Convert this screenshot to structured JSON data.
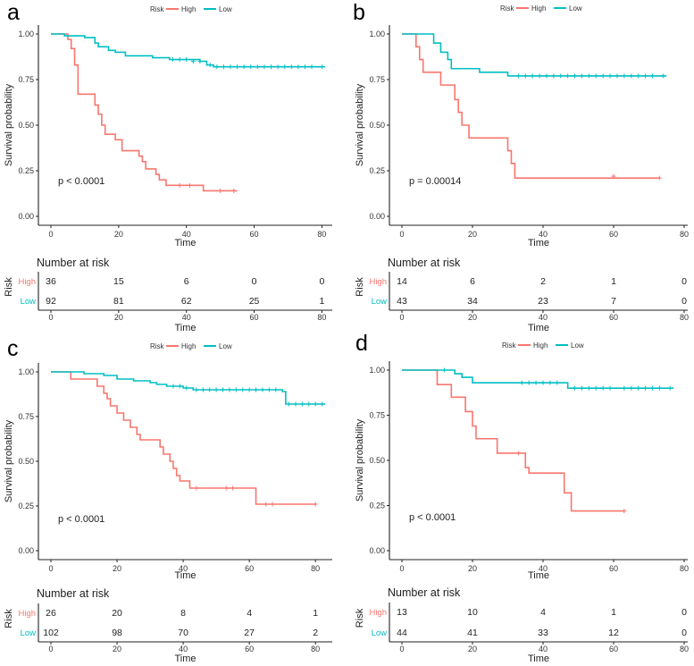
{
  "colors": {
    "high": "#F8766D",
    "low": "#00BFC4"
  },
  "chart_data": [
    {
      "type": "line",
      "panel_label": "a",
      "xlabel": "Time",
      "ylabel": "Survival probability",
      "xlim": [
        0,
        82
      ],
      "ylim": [
        0,
        1
      ],
      "xticks": [
        0,
        20,
        40,
        60,
        80
      ],
      "yticks": [
        "0.00",
        "0.25",
        "0.50",
        "0.75",
        "1.00"
      ],
      "legend_title": "Risk",
      "p_value": "p < 0.0001",
      "series": [
        {
          "name": "High",
          "steps": [
            [
              0,
              1
            ],
            [
              5,
              0.97
            ],
            [
              6,
              0.92
            ],
            [
              7,
              0.83
            ],
            [
              8,
              0.67
            ],
            [
              13,
              0.61
            ],
            [
              14,
              0.56
            ],
            [
              15,
              0.5
            ],
            [
              16,
              0.45
            ],
            [
              19,
              0.42
            ],
            [
              21,
              0.36
            ],
            [
              26,
              0.33
            ],
            [
              27,
              0.3
            ],
            [
              28,
              0.26
            ],
            [
              31,
              0.23
            ],
            [
              32,
              0.2
            ],
            [
              34,
              0.17
            ],
            [
              45,
              0.14
            ],
            [
              55,
              0.14
            ]
          ],
          "censors": [
            [
              38,
              0.17
            ],
            [
              41,
              0.17
            ],
            [
              50,
              0.14
            ],
            [
              54,
              0.14
            ]
          ]
        },
        {
          "name": "Low",
          "steps": [
            [
              0,
              1
            ],
            [
              4,
              0.99
            ],
            [
              10,
              0.98
            ],
            [
              13,
              0.95
            ],
            [
              14,
              0.93
            ],
            [
              17,
              0.91
            ],
            [
              19,
              0.9
            ],
            [
              22,
              0.88
            ],
            [
              30,
              0.87
            ],
            [
              35,
              0.86
            ],
            [
              44,
              0.85
            ],
            [
              46,
              0.83
            ],
            [
              48,
              0.82
            ],
            [
              81,
              0.82
            ]
          ],
          "censors": [
            [
              36,
              0.86
            ],
            [
              38,
              0.86
            ],
            [
              40,
              0.86
            ],
            [
              42,
              0.85
            ],
            [
              44,
              0.85
            ],
            [
              47,
              0.83
            ],
            [
              49,
              0.82
            ],
            [
              51,
              0.82
            ],
            [
              53,
              0.82
            ],
            [
              55,
              0.82
            ],
            [
              57,
              0.82
            ],
            [
              59,
              0.82
            ],
            [
              61,
              0.82
            ],
            [
              63,
              0.82
            ],
            [
              65,
              0.82
            ],
            [
              67,
              0.82
            ],
            [
              69,
              0.82
            ],
            [
              71,
              0.82
            ],
            [
              73,
              0.82
            ],
            [
              75,
              0.82
            ],
            [
              77,
              0.82
            ],
            [
              80,
              0.82
            ]
          ]
        }
      ],
      "risk_table": {
        "title": "Number at risk",
        "ylabel": "Risk",
        "xlabel": "Time",
        "rows": [
          {
            "group": "High",
            "values": [
              "36",
              "15",
              "6",
              "0",
              "0"
            ]
          },
          {
            "group": "Low",
            "values": [
              "92",
              "81",
              "62",
              "25",
              "1"
            ]
          }
        ]
      }
    },
    {
      "type": "line",
      "panel_label": "b",
      "xlabel": "Time",
      "ylabel": "Survival probability",
      "xlim": [
        0,
        80
      ],
      "ylim": [
        0,
        1
      ],
      "xticks": [
        0,
        20,
        40,
        60,
        80
      ],
      "yticks": [
        "0.00",
        "0.25",
        "0.50",
        "0.75",
        "1.00"
      ],
      "legend_title": "Risk",
      "p_value": "p = 0.00014",
      "series": [
        {
          "name": "High",
          "steps": [
            [
              0,
              1
            ],
            [
              4,
              0.93
            ],
            [
              5,
              0.86
            ],
            [
              6,
              0.79
            ],
            [
              11,
              0.72
            ],
            [
              15,
              0.64
            ],
            [
              16,
              0.57
            ],
            [
              17,
              0.5
            ],
            [
              19,
              0.43
            ],
            [
              30,
              0.36
            ],
            [
              31,
              0.29
            ],
            [
              32,
              0.21
            ],
            [
              73,
              0.21
            ]
          ],
          "censors": [
            [
              60,
              0.22
            ],
            [
              73,
              0.21
            ]
          ]
        },
        {
          "name": "Low",
          "steps": [
            [
              0,
              1
            ],
            [
              9,
              0.95
            ],
            [
              11,
              0.9
            ],
            [
              13,
              0.86
            ],
            [
              14,
              0.81
            ],
            [
              22,
              0.79
            ],
            [
              30,
              0.77
            ],
            [
              75,
              0.77
            ]
          ],
          "censors": [
            [
              33,
              0.77
            ],
            [
              35,
              0.77
            ],
            [
              37,
              0.77
            ],
            [
              39,
              0.77
            ],
            [
              41,
              0.77
            ],
            [
              43,
              0.77
            ],
            [
              45,
              0.77
            ],
            [
              47,
              0.77
            ],
            [
              49,
              0.77
            ],
            [
              51,
              0.77
            ],
            [
              53,
              0.77
            ],
            [
              55,
              0.77
            ],
            [
              57,
              0.77
            ],
            [
              59,
              0.77
            ],
            [
              61,
              0.77
            ],
            [
              63,
              0.77
            ],
            [
              65,
              0.77
            ],
            [
              67,
              0.77
            ],
            [
              69,
              0.77
            ],
            [
              71,
              0.77
            ],
            [
              74,
              0.77
            ]
          ]
        }
      ],
      "risk_table": {
        "title": "Number at risk",
        "ylabel": "Risk",
        "xlabel": "Time",
        "rows": [
          {
            "group": "High",
            "values": [
              "14",
              "6",
              "2",
              "1",
              "0"
            ]
          },
          {
            "group": "Low",
            "values": [
              "43",
              "34",
              "23",
              "7",
              "0"
            ]
          }
        ]
      }
    },
    {
      "type": "line",
      "panel_label": "c",
      "xlabel": "Time",
      "ylabel": "Survival probability",
      "xlim": [
        0,
        84
      ],
      "ylim": [
        0,
        1
      ],
      "xticks": [
        0,
        20,
        40,
        60,
        80
      ],
      "yticks": [
        "0.00",
        "0.25",
        "0.50",
        "0.75",
        "1.00"
      ],
      "legend_title": "Risk",
      "p_value": "p < 0.0001",
      "series": [
        {
          "name": "High",
          "steps": [
            [
              0,
              1
            ],
            [
              6,
              0.96
            ],
            [
              14,
              0.92
            ],
            [
              16,
              0.88
            ],
            [
              17,
              0.85
            ],
            [
              18,
              0.81
            ],
            [
              20,
              0.77
            ],
            [
              22,
              0.73
            ],
            [
              24,
              0.69
            ],
            [
              26,
              0.65
            ],
            [
              27,
              0.62
            ],
            [
              33,
              0.58
            ],
            [
              34,
              0.54
            ],
            [
              36,
              0.5
            ],
            [
              37,
              0.46
            ],
            [
              38,
              0.42
            ],
            [
              39,
              0.39
            ],
            [
              42,
              0.35
            ],
            [
              62,
              0.26
            ],
            [
              80,
              0.26
            ]
          ],
          "censors": [
            [
              44,
              0.35
            ],
            [
              53,
              0.35
            ],
            [
              55,
              0.35
            ],
            [
              65,
              0.26
            ],
            [
              67,
              0.26
            ],
            [
              80,
              0.26
            ]
          ]
        },
        {
          "name": "Low",
          "steps": [
            [
              0,
              1
            ],
            [
              10,
              0.99
            ],
            [
              16,
              0.98
            ],
            [
              20,
              0.96
            ],
            [
              25,
              0.95
            ],
            [
              30,
              0.94
            ],
            [
              32,
              0.93
            ],
            [
              35,
              0.92
            ],
            [
              40,
              0.91
            ],
            [
              43,
              0.9
            ],
            [
              70,
              0.89
            ],
            [
              71,
              0.82
            ],
            [
              83,
              0.82
            ]
          ],
          "censors": [
            [
              37,
              0.92
            ],
            [
              39,
              0.92
            ],
            [
              41,
              0.91
            ],
            [
              44,
              0.9
            ],
            [
              46,
              0.9
            ],
            [
              48,
              0.9
            ],
            [
              50,
              0.9
            ],
            [
              52,
              0.9
            ],
            [
              54,
              0.9
            ],
            [
              56,
              0.9
            ],
            [
              58,
              0.9
            ],
            [
              60,
              0.9
            ],
            [
              62,
              0.9
            ],
            [
              64,
              0.9
            ],
            [
              66,
              0.9
            ],
            [
              68,
              0.9
            ],
            [
              72,
              0.82
            ],
            [
              74,
              0.82
            ],
            [
              76,
              0.82
            ],
            [
              78,
              0.82
            ],
            [
              80,
              0.82
            ],
            [
              82,
              0.82
            ]
          ]
        }
      ],
      "risk_table": {
        "title": "Number at risk",
        "ylabel": "Risk",
        "xlabel": "Time",
        "rows": [
          {
            "group": "High",
            "values": [
              "26",
              "20",
              "8",
              "4",
              "1"
            ]
          },
          {
            "group": "Low",
            "values": [
              "102",
              "98",
              "70",
              "27",
              "2"
            ]
          }
        ]
      }
    },
    {
      "type": "line",
      "panel_label": "d",
      "xlabel": "Time",
      "ylabel": "Survival probability",
      "xlim": [
        0,
        80
      ],
      "ylim": [
        0,
        1
      ],
      "xticks": [
        0,
        20,
        40,
        60,
        80
      ],
      "yticks": [
        "0.00",
        "0.25",
        "0.50",
        "0.75",
        "1.00"
      ],
      "legend_title": "Risk",
      "p_value": "p < 0.0001",
      "series": [
        {
          "name": "High",
          "steps": [
            [
              0,
              1
            ],
            [
              10,
              0.92
            ],
            [
              14,
              0.85
            ],
            [
              18,
              0.77
            ],
            [
              20,
              0.69
            ],
            [
              21,
              0.62
            ],
            [
              27,
              0.54
            ],
            [
              35,
              0.46
            ],
            [
              36,
              0.43
            ],
            [
              46,
              0.32
            ],
            [
              48,
              0.22
            ],
            [
              63,
              0.22
            ]
          ],
          "censors": [
            [
              33,
              0.54
            ],
            [
              63,
              0.22
            ]
          ]
        },
        {
          "name": "Low",
          "steps": [
            [
              0,
              1
            ],
            [
              15,
              0.98
            ],
            [
              17,
              0.96
            ],
            [
              20,
              0.93
            ],
            [
              47,
              0.9
            ],
            [
              77,
              0.9
            ]
          ],
          "censors": [
            [
              12,
              1.0
            ],
            [
              34,
              0.93
            ],
            [
              36,
              0.93
            ],
            [
              38,
              0.93
            ],
            [
              40,
              0.93
            ],
            [
              42,
              0.93
            ],
            [
              44,
              0.93
            ],
            [
              49,
              0.9
            ],
            [
              51,
              0.9
            ],
            [
              53,
              0.9
            ],
            [
              55,
              0.9
            ],
            [
              57,
              0.9
            ],
            [
              59,
              0.9
            ],
            [
              63,
              0.9
            ],
            [
              65,
              0.9
            ],
            [
              67,
              0.9
            ],
            [
              69,
              0.9
            ],
            [
              71,
              0.9
            ],
            [
              73,
              0.9
            ],
            [
              76,
              0.9
            ]
          ]
        }
      ],
      "risk_table": {
        "title": "Number at risk",
        "ylabel": "Risk",
        "xlabel": "Time",
        "rows": [
          {
            "group": "High",
            "values": [
              "13",
              "10",
              "4",
              "1",
              "0"
            ]
          },
          {
            "group": "Low",
            "values": [
              "44",
              "41",
              "33",
              "12",
              "0"
            ]
          }
        ]
      }
    }
  ]
}
